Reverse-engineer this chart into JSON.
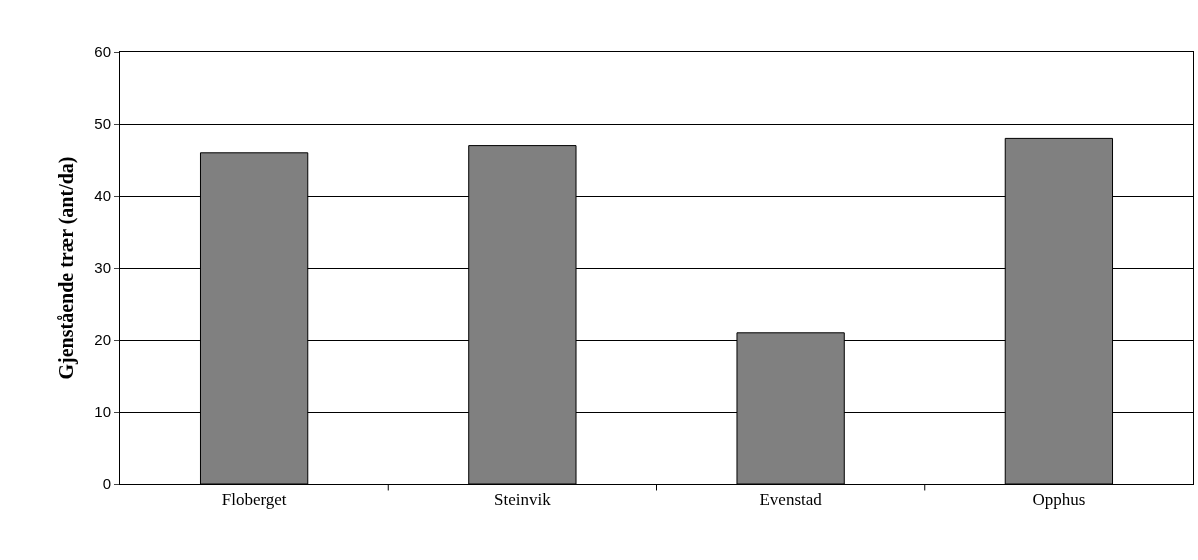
{
  "chart_data": {
    "type": "bar",
    "ylabel": "Gjenstående trær (ant/da)",
    "categories": [
      "Floberget",
      "Steinvik",
      "Evenstad",
      "Opphus"
    ],
    "values": [
      46,
      47,
      21,
      48
    ],
    "color": "#808080",
    "ylim": [
      0,
      60
    ],
    "yticks": [
      0,
      10,
      20,
      30,
      40,
      50,
      60
    ],
    "grid": "y"
  }
}
